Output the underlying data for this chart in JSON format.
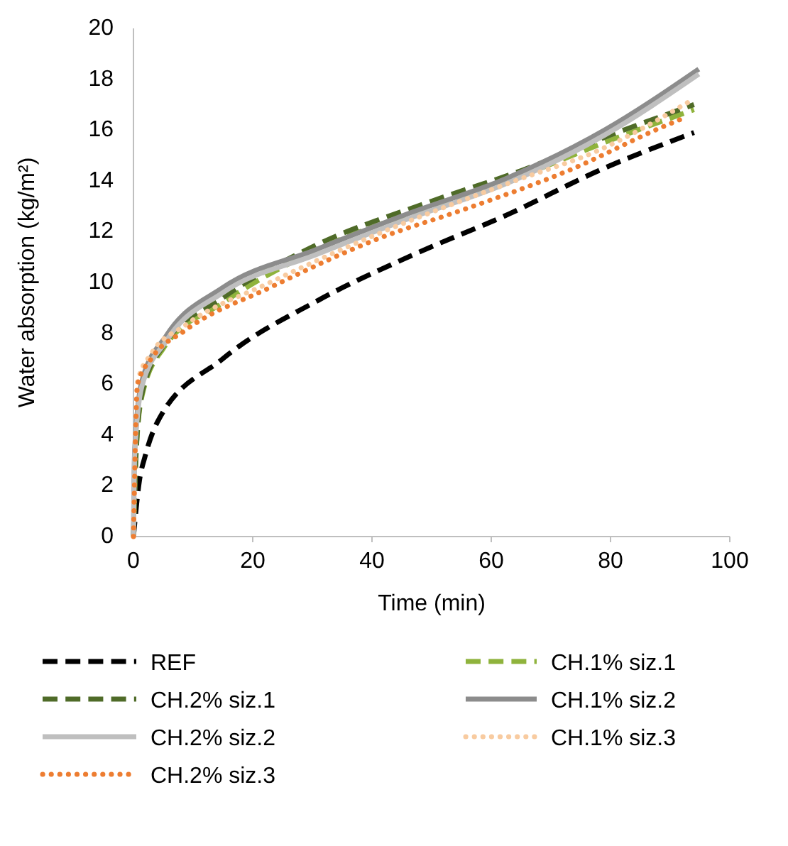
{
  "chart_data": {
    "type": "line",
    "xlabel": "Time (min)",
    "ylabel": "Water absorption (kg/m²)",
    "xlim": [
      0,
      100
    ],
    "xticks": [
      0,
      20,
      40,
      60,
      80,
      100
    ],
    "ylim": [
      0,
      20
    ],
    "yticks": [
      0,
      2,
      4,
      6,
      8,
      10,
      12,
      14,
      16,
      18,
      20
    ],
    "grid": false,
    "legend": "bottom",
    "marker": "none",
    "series": [
      {
        "name": "REF",
        "color": "#000000",
        "line_style": "dashed",
        "x": [
          0,
          1,
          2,
          4,
          15,
          31,
          47,
          63,
          78,
          94
        ],
        "values": [
          0,
          2.2,
          3.2,
          4.5,
          7.0,
          9.3,
          11.1,
          12.7,
          14.4,
          15.9
        ]
      },
      {
        "name": "CH.1% siz.1",
        "color": "#8fb33c",
        "line_style": "dashed",
        "x": [
          0,
          0.5,
          1.5,
          5,
          15,
          30,
          50,
          65,
          80,
          94
        ],
        "values": [
          0,
          3.5,
          5.6,
          7.4,
          9.2,
          11.2,
          13.0,
          14.2,
          15.6,
          16.8
        ]
      },
      {
        "name": "CH.2% siz.1",
        "color": "#4f6b28",
        "line_style": "dashed",
        "x": [
          0,
          0.5,
          1.5,
          5,
          15,
          30,
          50,
          65,
          80,
          94
        ],
        "values": [
          0,
          3.6,
          5.7,
          7.5,
          9.4,
          11.4,
          13.2,
          14.4,
          15.8,
          17.0
        ]
      },
      {
        "name": "CH.1% siz.2",
        "color": "#8c8c8c",
        "line_style": "solid",
        "x": [
          0,
          0.2,
          1.4,
          5.5,
          15,
          30.7,
          46,
          62.6,
          79,
          94.8
        ],
        "values": [
          0,
          3.4,
          6.1,
          7.9,
          9.8,
          11.3,
          12.7,
          14.1,
          16.0,
          18.4
        ]
      },
      {
        "name": "CH.2% siz.2",
        "color": "#bfbfbf",
        "line_style": "solid",
        "x": [
          0,
          0.2,
          1.4,
          5.5,
          15,
          30.7,
          46,
          62.6,
          79,
          94.8
        ],
        "values": [
          0,
          3.2,
          5.9,
          7.7,
          9.6,
          11.1,
          12.5,
          13.9,
          15.8,
          18.2
        ]
      },
      {
        "name": "CH.1% siz.3",
        "color": "#f8cba0",
        "line_style": "dotted",
        "x": [
          0,
          0.7,
          3,
          8.6,
          22.9,
          41.9,
          64,
          78,
          93.8
        ],
        "values": [
          0,
          6.1,
          7.2,
          8.3,
          10.0,
          12.0,
          14.0,
          15.2,
          17.2
        ]
      },
      {
        "name": "CH.2% siz.3",
        "color": "#ed7d31",
        "line_style": "dotted",
        "x": [
          0,
          0.7,
          3,
          8.6,
          22.9,
          41.9,
          54.5,
          72.9,
          89.5,
          92.6
        ],
        "values": [
          0,
          6.0,
          7.0,
          8.1,
          9.8,
          11.8,
          12.8,
          14.4,
          16.2,
          16.5
        ]
      }
    ]
  }
}
